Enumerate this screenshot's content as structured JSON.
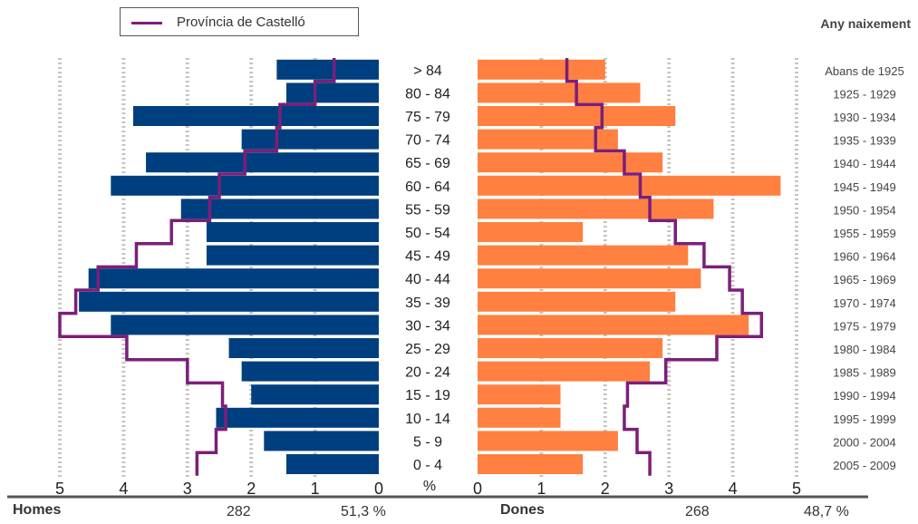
{
  "legend": {
    "label": "Província de Castelló",
    "color": "#7b1f7a"
  },
  "birth_header": "Any naixement",
  "footer": {
    "left_label": "Homes",
    "left_total": "282",
    "left_pct": "51,3 %",
    "right_label": "Dones",
    "right_total": "268",
    "right_pct": "48,7 %"
  },
  "axis_unit": "%",
  "colors": {
    "male": "#003f7f",
    "female": "#ff8040",
    "province": "#7b1f7a",
    "grid": "#c8c4bc",
    "axis": "#555555"
  },
  "chart_data": {
    "type": "bar",
    "subtype": "population-pyramid",
    "age_groups": [
      "> 84",
      "80 - 84",
      "75 - 79",
      "70 - 74",
      "65 - 69",
      "60 - 64",
      "55 - 59",
      "50 - 54",
      "45 - 49",
      "40 - 44",
      "35 - 39",
      "30 - 34",
      "25 - 29",
      "20 - 24",
      "15 - 19",
      "10 - 14",
      "5 - 9",
      "0 - 4"
    ],
    "birth_years": [
      "Abans de 1925",
      "1925 - 1929",
      "1930 - 1934",
      "1935 - 1939",
      "1940 - 1944",
      "1945 - 1949",
      "1950 - 1954",
      "1955 - 1959",
      "1960 - 1964",
      "1965 - 1969",
      "1970 - 1974",
      "1975 - 1979",
      "1980 - 1984",
      "1985 - 1989",
      "1990 - 1994",
      "1995 - 1999",
      "2000 - 2004",
      "2005 - 2009"
    ],
    "xlim": [
      0,
      5
    ],
    "ticks": [
      0,
      1,
      2,
      3,
      4,
      5
    ],
    "series": [
      {
        "name": "Homes",
        "values": [
          1.6,
          1.45,
          3.85,
          2.15,
          3.65,
          4.2,
          3.1,
          2.7,
          2.7,
          4.55,
          4.7,
          4.2,
          2.35,
          2.15,
          2.0,
          2.55,
          1.8,
          1.45
        ]
      },
      {
        "name": "Dones",
        "values": [
          2.0,
          2.55,
          3.1,
          2.2,
          2.9,
          4.75,
          3.7,
          1.65,
          3.3,
          3.5,
          3.1,
          4.25,
          2.9,
          2.7,
          1.3,
          1.3,
          2.2,
          1.65
        ]
      },
      {
        "name": "Província de Castelló",
        "values_male": [
          0.7,
          1.0,
          1.55,
          1.6,
          2.1,
          2.5,
          2.65,
          3.25,
          3.8,
          4.4,
          4.75,
          5.0,
          3.95,
          3.0,
          2.45,
          2.4,
          2.55,
          2.85
        ],
        "values_female": [
          1.4,
          1.55,
          1.95,
          1.85,
          2.3,
          2.55,
          2.7,
          3.1,
          3.55,
          3.95,
          4.15,
          4.45,
          3.75,
          2.95,
          2.35,
          2.3,
          2.5,
          2.7
        ]
      }
    ]
  }
}
